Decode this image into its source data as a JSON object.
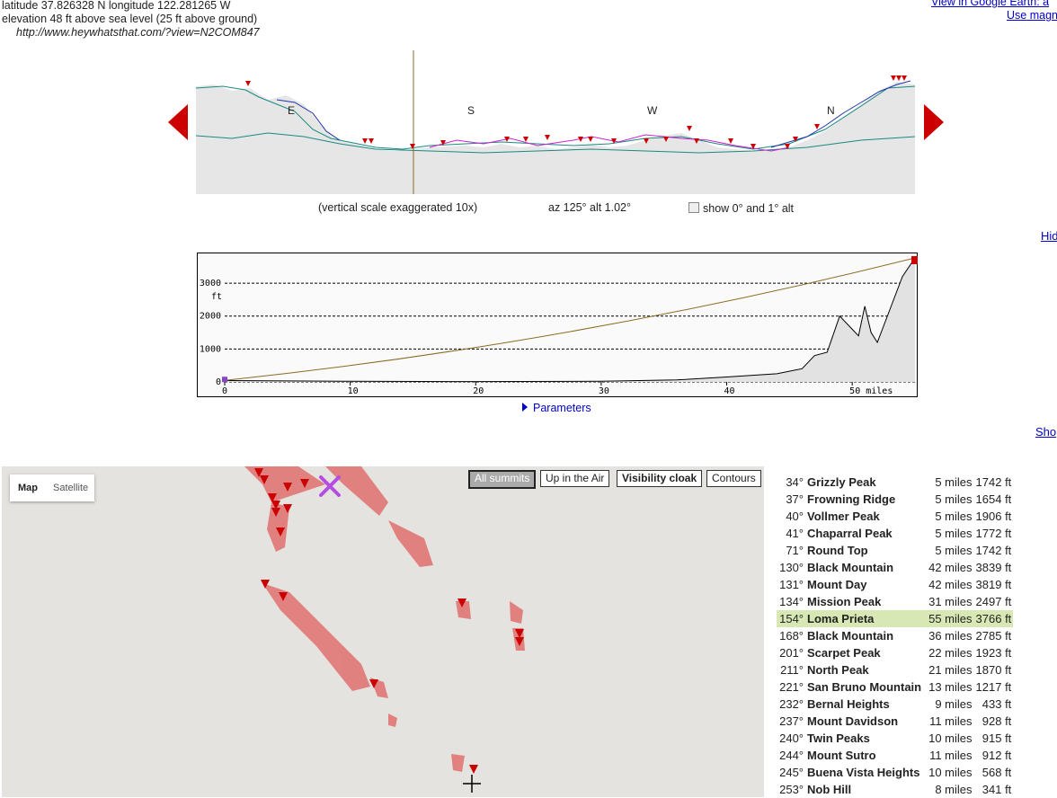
{
  "location": {
    "coords": "latitude 37.826328 N longitude 122.281265 W",
    "elevation": "elevation 48 ft above sea level (25 ft above ground)",
    "url": "http://www.heywhatsthat.com/?view=N2COM847"
  },
  "top_links": {
    "google_earth": "View in Google Earth: a",
    "use_magn": "Use magn"
  },
  "panorama": {
    "compass": [
      "E",
      "S",
      "W",
      "N"
    ],
    "caption_scale": "(vertical scale exaggerated 10x)",
    "caption_azalt": "az 125° alt 1.02°",
    "checkbox_label": "show 0° and 1° alt"
  },
  "side_links": {
    "hide": "Hid",
    "show": "Sho"
  },
  "profile": {
    "parameters_label": "Parameters",
    "y_unit": "ft",
    "x_ticks": [
      "0",
      "10",
      "20",
      "30",
      "40",
      "50 miles"
    ],
    "y_ticks": [
      "0",
      "1000",
      "2000",
      "3000"
    ]
  },
  "chart_data": {
    "type": "line",
    "xlabel": "miles",
    "ylabel": "ft",
    "xlim": [
      0,
      55
    ],
    "ylim": [
      0,
      3766
    ],
    "series": [
      {
        "name": "line of sight",
        "x": [
          0,
          55
        ],
        "y": [
          48,
          3766
        ]
      },
      {
        "name": "terrain",
        "x": [
          0,
          5,
          10,
          20,
          30,
          36,
          40,
          44,
          46,
          47,
          48,
          49,
          50,
          50.5,
          51,
          51.5,
          52,
          53,
          54,
          55
        ],
        "y": [
          40,
          30,
          20,
          10,
          20,
          60,
          150,
          250,
          400,
          800,
          900,
          2000,
          1600,
          1400,
          2300,
          1500,
          1200,
          2200,
          3200,
          3766
        ]
      }
    ]
  },
  "map": {
    "tab_map": "Map",
    "tab_satellite": "Satellite",
    "buttons": [
      "All summits",
      "Up in the Air",
      "Visibility cloak",
      "Contours"
    ]
  },
  "peaks": [
    {
      "az": "34°",
      "name": "Grizzly Peak",
      "dist": "5 miles",
      "elev": "1742 ft"
    },
    {
      "az": "37°",
      "name": "Frowning Ridge",
      "dist": "5 miles",
      "elev": "1654 ft"
    },
    {
      "az": "40°",
      "name": "Vollmer Peak",
      "dist": "5 miles",
      "elev": "1906 ft"
    },
    {
      "az": "41°",
      "name": "Chaparral Peak",
      "dist": "5 miles",
      "elev": "1772 ft"
    },
    {
      "az": "71°",
      "name": "Round Top",
      "dist": "5 miles",
      "elev": "1742 ft"
    },
    {
      "az": "130°",
      "name": "Black Mountain",
      "dist": "42 miles",
      "elev": "3839 ft"
    },
    {
      "az": "131°",
      "name": "Mount Day",
      "dist": "42 miles",
      "elev": "3819 ft"
    },
    {
      "az": "134°",
      "name": "Mission Peak",
      "dist": "31 miles",
      "elev": "2497 ft"
    },
    {
      "az": "154°",
      "name": "Loma Prieta",
      "dist": "55 miles",
      "elev": "3766 ft"
    },
    {
      "az": "168°",
      "name": "Black Mountain",
      "dist": "36 miles",
      "elev": "2785 ft"
    },
    {
      "az": "201°",
      "name": "Scarpet Peak",
      "dist": "22 miles",
      "elev": "1923 ft"
    },
    {
      "az": "211°",
      "name": "North Peak",
      "dist": "21 miles",
      "elev": "1870 ft"
    },
    {
      "az": "221°",
      "name": "San Bruno Mountain",
      "dist": "13 miles",
      "elev": "1217 ft"
    },
    {
      "az": "232°",
      "name": "Bernal Heights",
      "dist": "9 miles",
      "elev": "433 ft"
    },
    {
      "az": "237°",
      "name": "Mount Davidson",
      "dist": "11 miles",
      "elev": "928 ft"
    },
    {
      "az": "240°",
      "name": "Twin Peaks",
      "dist": "10 miles",
      "elev": "915 ft"
    },
    {
      "az": "244°",
      "name": "Mount Sutro",
      "dist": "11 miles",
      "elev": "912 ft"
    },
    {
      "az": "245°",
      "name": "Buena Vista Heights",
      "dist": "10 miles",
      "elev": "568 ft"
    },
    {
      "az": "253°",
      "name": "Nob Hill",
      "dist": "8 miles",
      "elev": "341 ft"
    }
  ],
  "colors": {
    "highlight_row": "#d7e8b4",
    "arrow_red": "#cc0000",
    "viewshed": "#e07070",
    "marker_purple": "#b44ee0",
    "sight_line": "#8a6a20"
  }
}
